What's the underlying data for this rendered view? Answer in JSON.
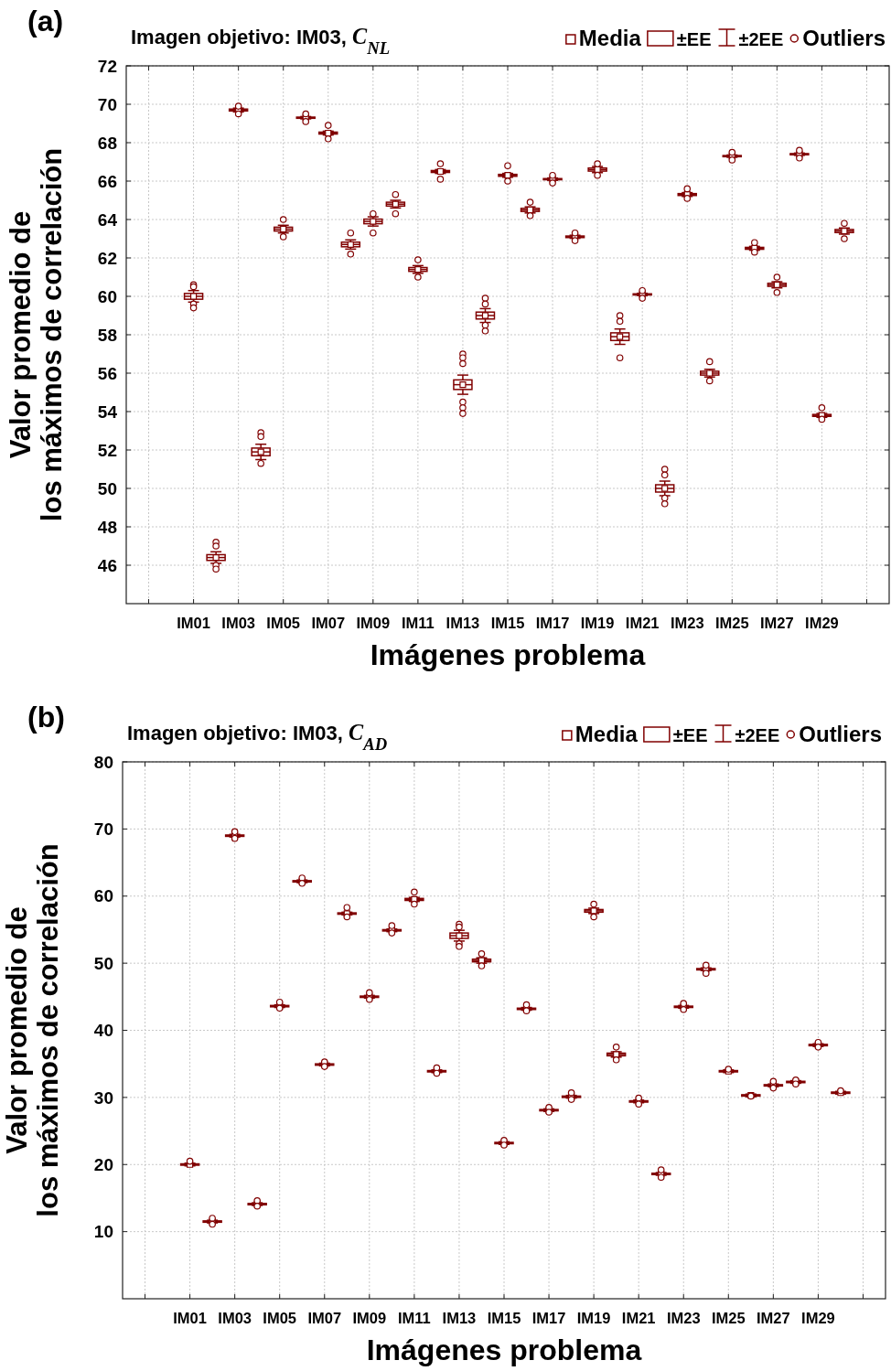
{
  "chart_data": [
    {
      "type": "box",
      "title": "Imagen objetivo: IM03, C$_{NL}$",
      "xlabel": "Imágenes problema",
      "ylabel": "Valor promedio de\nlos máximos de correlación",
      "annotations": [
        "(a)",
        "Media",
        "±EE",
        "±2EE",
        "Outliers"
      ],
      "categories": [
        "IM01",
        null,
        "IM03",
        null,
        "IM05",
        null,
        "IM07",
        null,
        "IM09",
        null,
        "IM11",
        null,
        "IM13",
        null,
        "IM15",
        null,
        "IM17",
        null,
        "IM19",
        null,
        "IM21",
        null,
        "IM23",
        null,
        "IM25",
        null,
        "IM27",
        null,
        "IM29",
        null
      ],
      "color": "#800000",
      "ylim": [
        44,
        72
      ],
      "yticks": [
        46,
        48,
        50,
        52,
        54,
        56,
        58,
        60,
        62,
        64,
        66,
        68,
        70,
        72
      ],
      "grid": true,
      "boxes": [
        {
          "mean": 60.0,
          "low": 59.7,
          "q1": 59.85,
          "median": 60.0,
          "q3": 60.15,
          "high": 60.3,
          "outliers": [
            60.6,
            60.5,
            59.6,
            59.4
          ]
        },
        {
          "mean": 46.4,
          "low": 46.1,
          "q1": 46.25,
          "median": 46.4,
          "q3": 46.55,
          "high": 46.7,
          "outliers": [
            47.2,
            47.0,
            46.0,
            45.8
          ]
        },
        {
          "mean": 69.7,
          "low": 69.6,
          "q1": 69.65,
          "median": 69.7,
          "q3": 69.75,
          "high": 69.8,
          "outliers": [
            69.9,
            69.5
          ]
        },
        {
          "mean": 51.9,
          "low": 51.5,
          "q1": 51.7,
          "median": 51.9,
          "q3": 52.1,
          "high": 52.3,
          "outliers": [
            52.9,
            52.7,
            51.3
          ]
        },
        {
          "mean": 63.5,
          "low": 63.3,
          "q1": 63.4,
          "median": 63.5,
          "q3": 63.6,
          "high": 63.7,
          "outliers": [
            64.0,
            63.1
          ]
        },
        {
          "mean": 69.3,
          "low": 69.24,
          "q1": 69.27,
          "median": 69.3,
          "q3": 69.33,
          "high": 69.36,
          "outliers": [
            69.5,
            69.1
          ]
        },
        {
          "mean": 68.5,
          "low": 68.4,
          "q1": 68.45,
          "median": 68.5,
          "q3": 68.55,
          "high": 68.6,
          "outliers": [
            68.9,
            68.2
          ]
        },
        {
          "mean": 62.7,
          "low": 62.46,
          "q1": 62.58,
          "median": 62.7,
          "q3": 62.82,
          "high": 62.94,
          "outliers": [
            63.3,
            62.2
          ]
        },
        {
          "mean": 63.9,
          "low": 63.66,
          "q1": 63.78,
          "median": 63.9,
          "q3": 64.02,
          "high": 64.14,
          "outliers": [
            64.3,
            63.3
          ]
        },
        {
          "mean": 64.8,
          "low": 64.6,
          "q1": 64.7,
          "median": 64.8,
          "q3": 64.9,
          "high": 65.0,
          "outliers": [
            65.3,
            64.3
          ]
        },
        {
          "mean": 61.4,
          "low": 61.2,
          "q1": 61.3,
          "median": 61.4,
          "q3": 61.5,
          "high": 61.6,
          "outliers": [
            61.9,
            61.0
          ]
        },
        {
          "mean": 66.5,
          "low": 66.4,
          "q1": 66.45,
          "median": 66.5,
          "q3": 66.55,
          "high": 66.6,
          "outliers": [
            66.9,
            66.1
          ]
        },
        {
          "mean": 55.4,
          "low": 54.9,
          "q1": 55.15,
          "median": 55.4,
          "q3": 55.65,
          "high": 55.9,
          "outliers": [
            57.0,
            56.8,
            56.5,
            54.5,
            54.2,
            53.9
          ]
        },
        {
          "mean": 59.0,
          "low": 58.64,
          "q1": 58.82,
          "median": 59.0,
          "q3": 59.18,
          "high": 59.36,
          "outliers": [
            59.9,
            59.6,
            58.5,
            58.2
          ]
        },
        {
          "mean": 66.3,
          "low": 66.2,
          "q1": 66.25,
          "median": 66.3,
          "q3": 66.35,
          "high": 66.4,
          "outliers": [
            66.8,
            66.0
          ]
        },
        {
          "mean": 64.5,
          "low": 64.34,
          "q1": 64.42,
          "median": 64.5,
          "q3": 64.58,
          "high": 64.66,
          "outliers": [
            64.9,
            64.2
          ]
        },
        {
          "mean": 66.1,
          "low": 66.04,
          "q1": 66.07,
          "median": 66.1,
          "q3": 66.13,
          "high": 66.16,
          "outliers": [
            66.3,
            65.9
          ]
        },
        {
          "mean": 63.1,
          "low": 63.02,
          "q1": 63.06,
          "median": 63.1,
          "q3": 63.14,
          "high": 63.18,
          "outliers": [
            63.3,
            62.9
          ]
        },
        {
          "mean": 66.6,
          "low": 66.44,
          "q1": 66.52,
          "median": 66.6,
          "q3": 66.68,
          "high": 66.76,
          "outliers": [
            66.9,
            66.3
          ]
        },
        {
          "mean": 57.9,
          "low": 57.5,
          "q1": 57.7,
          "median": 57.9,
          "q3": 58.1,
          "high": 58.3,
          "outliers": [
            59.0,
            58.7,
            56.8
          ]
        },
        {
          "mean": 60.1,
          "low": 60.04,
          "q1": 60.07,
          "median": 60.1,
          "q3": 60.13,
          "high": 60.16,
          "outliers": [
            60.3,
            59.9
          ]
        },
        {
          "mean": 50.0,
          "low": 49.62,
          "q1": 49.81,
          "median": 50.0,
          "q3": 50.19,
          "high": 50.38,
          "outliers": [
            51.0,
            50.7,
            49.5,
            49.2
          ]
        },
        {
          "mean": 65.3,
          "low": 65.2,
          "q1": 65.25,
          "median": 65.3,
          "q3": 65.35,
          "high": 65.4,
          "outliers": [
            65.6,
            65.1
          ]
        },
        {
          "mean": 56.0,
          "low": 55.8,
          "q1": 55.9,
          "median": 56.0,
          "q3": 56.1,
          "high": 56.2,
          "outliers": [
            56.6,
            55.6
          ]
        },
        {
          "mean": 67.3,
          "low": 67.24,
          "q1": 67.27,
          "median": 67.3,
          "q3": 67.33,
          "high": 67.36,
          "outliers": [
            67.5,
            67.1
          ]
        },
        {
          "mean": 62.5,
          "low": 62.4,
          "q1": 62.45,
          "median": 62.5,
          "q3": 62.55,
          "high": 62.6,
          "outliers": [
            62.8,
            62.3
          ]
        },
        {
          "mean": 60.6,
          "low": 60.44,
          "q1": 60.52,
          "median": 60.6,
          "q3": 60.68,
          "high": 60.76,
          "outliers": [
            61.0,
            60.2
          ]
        },
        {
          "mean": 67.4,
          "low": 67.34,
          "q1": 67.37,
          "median": 67.4,
          "q3": 67.43,
          "high": 67.46,
          "outliers": [
            67.6,
            67.2
          ]
        },
        {
          "mean": 53.8,
          "low": 53.7,
          "q1": 53.75,
          "median": 53.8,
          "q3": 53.85,
          "high": 53.9,
          "outliers": [
            54.2,
            53.6
          ]
        },
        {
          "mean": 63.4,
          "low": 63.24,
          "q1": 63.32,
          "median": 63.4,
          "q3": 63.48,
          "high": 63.56,
          "outliers": [
            63.8,
            63.0
          ]
        }
      ]
    },
    {
      "type": "box",
      "title": "Imagen objetivo: IM03, C$_{AD}$",
      "xlabel": "Imágenes problema",
      "ylabel": "Valor promedio de\nlos máximos de correlación",
      "annotations": [
        "(b)",
        "Media",
        "±EE",
        "±2EE",
        "Outliers"
      ],
      "categories": [
        "IM01",
        null,
        "IM03",
        null,
        "IM05",
        null,
        "IM07",
        null,
        "IM09",
        null,
        "IM11",
        null,
        "IM13",
        null,
        "IM15",
        null,
        "IM17",
        null,
        "IM19",
        null,
        "IM21",
        null,
        "IM23",
        null,
        "IM25",
        null,
        "IM27",
        null,
        "IM29",
        null
      ],
      "color": "#800000",
      "ylim": [
        0,
        80
      ],
      "yticks": [
        10,
        20,
        30,
        40,
        50,
        60,
        70,
        80
      ],
      "grid": true,
      "boxes": [
        {
          "mean": 20.0,
          "low": 19.8,
          "q1": 19.9,
          "median": 20.0,
          "q3": 20.1,
          "high": 20.2,
          "outliers": [
            20.5
          ]
        },
        {
          "mean": 11.5,
          "low": 11.3,
          "q1": 11.4,
          "median": 11.5,
          "q3": 11.6,
          "high": 11.7,
          "outliers": [
            12.0,
            11.1
          ]
        },
        {
          "mean": 69.0,
          "low": 68.8,
          "q1": 68.9,
          "median": 69.0,
          "q3": 69.1,
          "high": 69.2,
          "outliers": [
            69.6,
            68.6
          ]
        },
        {
          "mean": 14.1,
          "low": 13.9,
          "q1": 14.0,
          "median": 14.1,
          "q3": 14.2,
          "high": 14.3,
          "outliers": [
            14.6,
            13.8
          ]
        },
        {
          "mean": 43.6,
          "low": 43.4,
          "q1": 43.5,
          "median": 43.6,
          "q3": 43.7,
          "high": 43.8,
          "outliers": [
            44.2,
            43.3
          ]
        },
        {
          "mean": 62.2,
          "low": 62.0,
          "q1": 62.1,
          "median": 62.2,
          "q3": 62.3,
          "high": 62.4,
          "outliers": [
            62.7,
            61.9
          ]
        },
        {
          "mean": 34.9,
          "low": 34.7,
          "q1": 34.8,
          "median": 34.9,
          "q3": 35.0,
          "high": 35.1,
          "outliers": [
            35.3,
            34.6
          ]
        },
        {
          "mean": 57.4,
          "low": 57.2,
          "q1": 57.3,
          "median": 57.4,
          "q3": 57.5,
          "high": 57.6,
          "outliers": [
            58.3,
            56.9
          ]
        },
        {
          "mean": 45.0,
          "low": 44.8,
          "q1": 44.9,
          "median": 45.0,
          "q3": 45.1,
          "high": 45.2,
          "outliers": [
            45.6,
            44.6
          ]
        },
        {
          "mean": 54.9,
          "low": 54.7,
          "q1": 54.8,
          "median": 54.9,
          "q3": 55.0,
          "high": 55.1,
          "outliers": [
            55.6,
            54.5
          ]
        },
        {
          "mean": 59.5,
          "low": 59.2,
          "q1": 59.35,
          "median": 59.5,
          "q3": 59.65,
          "high": 59.8,
          "outliers": [
            60.6,
            58.8
          ]
        },
        {
          "mean": 33.9,
          "low": 33.7,
          "q1": 33.8,
          "median": 33.9,
          "q3": 34.0,
          "high": 34.1,
          "outliers": [
            34.4,
            33.6
          ]
        },
        {
          "mean": 54.1,
          "low": 53.3,
          "q1": 53.7,
          "median": 54.1,
          "q3": 54.5,
          "high": 54.9,
          "outliers": [
            55.8,
            55.4,
            52.9,
            52.5
          ]
        },
        {
          "mean": 50.4,
          "low": 50.0,
          "q1": 50.2,
          "median": 50.4,
          "q3": 50.6,
          "high": 50.8,
          "outliers": [
            51.4,
            49.6
          ]
        },
        {
          "mean": 23.2,
          "low": 23.0,
          "q1": 23.1,
          "median": 23.2,
          "q3": 23.3,
          "high": 23.4,
          "outliers": [
            23.6,
            22.9
          ]
        },
        {
          "mean": 43.2,
          "low": 43.0,
          "q1": 43.1,
          "median": 43.2,
          "q3": 43.3,
          "high": 43.4,
          "outliers": [
            43.8,
            42.9
          ]
        },
        {
          "mean": 28.1,
          "low": 27.9,
          "q1": 28.0,
          "median": 28.1,
          "q3": 28.2,
          "high": 28.3,
          "outliers": [
            28.5,
            27.8
          ]
        },
        {
          "mean": 30.1,
          "low": 29.9,
          "q1": 30.0,
          "median": 30.1,
          "q3": 30.2,
          "high": 30.3,
          "outliers": [
            30.7,
            29.7
          ]
        },
        {
          "mean": 57.8,
          "low": 57.4,
          "q1": 57.6,
          "median": 57.8,
          "q3": 58.0,
          "high": 58.2,
          "outliers": [
            58.8,
            56.9
          ]
        },
        {
          "mean": 36.4,
          "low": 36.0,
          "q1": 36.2,
          "median": 36.4,
          "q3": 36.6,
          "high": 36.8,
          "outliers": [
            37.5,
            35.6
          ]
        },
        {
          "mean": 29.4,
          "low": 29.2,
          "q1": 29.3,
          "median": 29.4,
          "q3": 29.5,
          "high": 29.6,
          "outliers": [
            29.9,
            29.0
          ]
        },
        {
          "mean": 18.6,
          "low": 18.4,
          "q1": 18.5,
          "median": 18.6,
          "q3": 18.7,
          "high": 18.8,
          "outliers": [
            19.2,
            18.1
          ]
        },
        {
          "mean": 43.5,
          "low": 43.3,
          "q1": 43.4,
          "median": 43.5,
          "q3": 43.6,
          "high": 43.7,
          "outliers": [
            44.0,
            43.1
          ]
        },
        {
          "mean": 49.1,
          "low": 48.9,
          "q1": 49.0,
          "median": 49.1,
          "q3": 49.2,
          "high": 49.3,
          "outliers": [
            49.7,
            48.5
          ]
        },
        {
          "mean": 33.9,
          "low": 33.7,
          "q1": 33.8,
          "median": 33.9,
          "q3": 34.0,
          "high": 34.1,
          "outliers": [
            34.2
          ]
        },
        {
          "mean": 30.3,
          "low": 30.1,
          "q1": 30.2,
          "median": 30.3,
          "q3": 30.4,
          "high": 30.5,
          "outliers": [
            30.2
          ]
        },
        {
          "mean": 31.8,
          "low": 31.6,
          "q1": 31.7,
          "median": 31.8,
          "q3": 31.9,
          "high": 32.0,
          "outliers": [
            32.4,
            31.4
          ]
        },
        {
          "mean": 32.3,
          "low": 32.1,
          "q1": 32.2,
          "median": 32.3,
          "q3": 32.4,
          "high": 32.5,
          "outliers": [
            32.6,
            32.0
          ]
        },
        {
          "mean": 37.8,
          "low": 37.6,
          "q1": 37.7,
          "median": 37.8,
          "q3": 37.9,
          "high": 38.0,
          "outliers": [
            38.2,
            37.5
          ]
        },
        {
          "mean": 30.7,
          "low": 30.5,
          "q1": 30.6,
          "median": 30.7,
          "q3": 30.8,
          "high": 30.9,
          "outliers": [
            31.0
          ]
        }
      ]
    }
  ]
}
